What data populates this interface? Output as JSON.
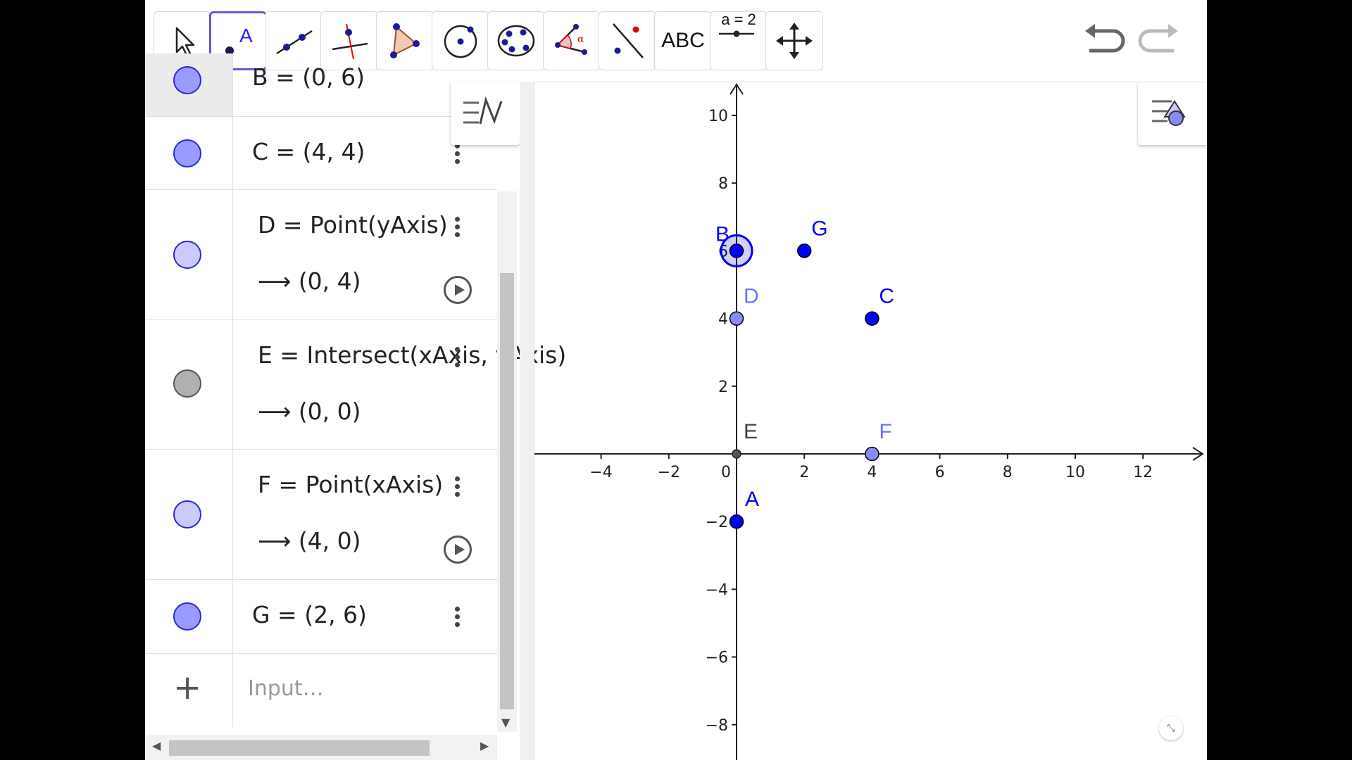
{
  "toolbar": {
    "tools": [
      "Move",
      "Point",
      "Line",
      "Perpendicular Line",
      "Polygon",
      "Circle with Center",
      "Conic through 5 Points",
      "Angle",
      "Reflect about Line",
      "Text",
      "Slider",
      "Move Graphics View"
    ],
    "selected_tool": "Point",
    "text_tool_label": "ABC",
    "slider_tool_label": "a = 2"
  },
  "algebra": {
    "rows": [
      {
        "id": "B",
        "text": "B = (0, 6)",
        "marble_color": "#9a9aff",
        "partial": true
      },
      {
        "id": "C",
        "text": "C = (4, 4)",
        "marble_color": "#9a9aff"
      },
      {
        "id": "D",
        "definition": "D  =  Point(yAxis)",
        "value": "(0, 4)",
        "marble_color": "#cacaff"
      },
      {
        "id": "E",
        "definition": "E  =  Intersect(xAxis, yAxis)",
        "value": "(0, 0)",
        "marble_color": "#b0b0b0"
      },
      {
        "id": "F",
        "definition": "F  =  Point(xAxis)",
        "value": "(4, 0)",
        "marble_color": "#cacaff"
      },
      {
        "id": "G",
        "text": "G = (2, 6)",
        "marble_color": "#9a9aff"
      }
    ],
    "arrow_symbol": "⟶",
    "input_placeholder": "Input…",
    "plus_symbol": "+"
  },
  "graphics": {
    "x_ticks": [
      "−4",
      "−2",
      "0",
      "2",
      "4",
      "6",
      "8",
      "10",
      "12"
    ],
    "y_ticks": [
      "10",
      "8",
      "6",
      "4",
      "2",
      "−2",
      "−4",
      "−6",
      "−8"
    ],
    "points": [
      {
        "name": "A",
        "x": 0,
        "y": -2,
        "color": "#0000ff"
      },
      {
        "name": "B",
        "x": 0,
        "y": 6,
        "color": "#0000ff",
        "selected": true
      },
      {
        "name": "C",
        "x": 4,
        "y": 4,
        "color": "#0000ff"
      },
      {
        "name": "D",
        "x": 0,
        "y": 4,
        "color": "#6f6fff"
      },
      {
        "name": "E",
        "x": 0,
        "y": 0,
        "color": "#444444"
      },
      {
        "name": "F",
        "x": 4,
        "y": 0,
        "color": "#6f6fff"
      },
      {
        "name": "G",
        "x": 2,
        "y": 6,
        "color": "#0000ff"
      }
    ]
  }
}
